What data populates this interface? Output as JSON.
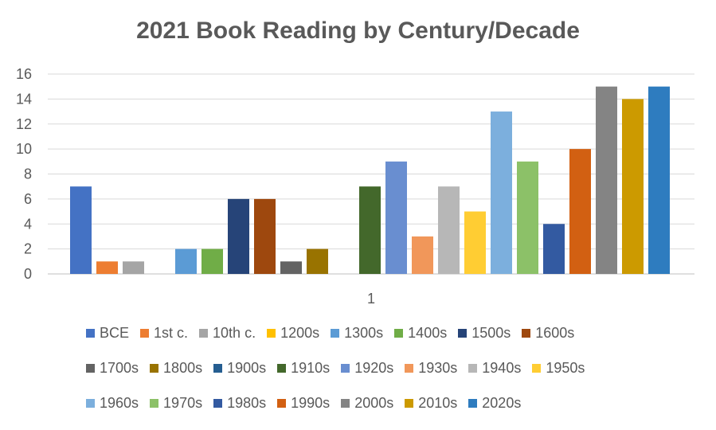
{
  "chart_data": {
    "type": "bar",
    "title": "2021 Book Reading by Century/Decade",
    "categories": [
      "1"
    ],
    "ylim": [
      0,
      16
    ],
    "yticks": [
      0,
      2,
      4,
      6,
      8,
      10,
      12,
      14,
      16
    ],
    "grid": true,
    "legend_position": "bottom",
    "series": [
      {
        "name": "BCE",
        "values": [
          7
        ],
        "color": "#4472C4"
      },
      {
        "name": "1st c.",
        "values": [
          1
        ],
        "color": "#ED7D31"
      },
      {
        "name": "10th c.",
        "values": [
          1
        ],
        "color": "#A5A5A5"
      },
      {
        "name": "1200s",
        "values": [
          0
        ],
        "color": "#FFC000"
      },
      {
        "name": "1300s",
        "values": [
          2
        ],
        "color": "#5B9BD5"
      },
      {
        "name": "1400s",
        "values": [
          2
        ],
        "color": "#70AD47"
      },
      {
        "name": "1500s",
        "values": [
          6
        ],
        "color": "#264478"
      },
      {
        "name": "1600s",
        "values": [
          6
        ],
        "color": "#9E480E"
      },
      {
        "name": "1700s",
        "values": [
          1
        ],
        "color": "#636363"
      },
      {
        "name": "1800s",
        "values": [
          2
        ],
        "color": "#997300"
      },
      {
        "name": "1900s",
        "values": [
          0
        ],
        "color": "#255E91"
      },
      {
        "name": "1910s",
        "values": [
          7
        ],
        "color": "#43682B"
      },
      {
        "name": "1920s",
        "values": [
          9
        ],
        "color": "#698ED0"
      },
      {
        "name": "1930s",
        "values": [
          3
        ],
        "color": "#F1975A"
      },
      {
        "name": "1940s",
        "values": [
          7
        ],
        "color": "#B7B7B7"
      },
      {
        "name": "1950s",
        "values": [
          5
        ],
        "color": "#FFCD33"
      },
      {
        "name": "1960s",
        "values": [
          13
        ],
        "color": "#7CAFDD"
      },
      {
        "name": "1970s",
        "values": [
          9
        ],
        "color": "#8CC168"
      },
      {
        "name": "1980s",
        "values": [
          4
        ],
        "color": "#335AA1"
      },
      {
        "name": "1990s",
        "values": [
          10
        ],
        "color": "#D26012"
      },
      {
        "name": "2000s",
        "values": [
          15
        ],
        "color": "#848484"
      },
      {
        "name": "2010s",
        "values": [
          14
        ],
        "color": "#CC9A00"
      },
      {
        "name": "2020s",
        "values": [
          15
        ],
        "color": "#2E7CBF"
      }
    ]
  }
}
